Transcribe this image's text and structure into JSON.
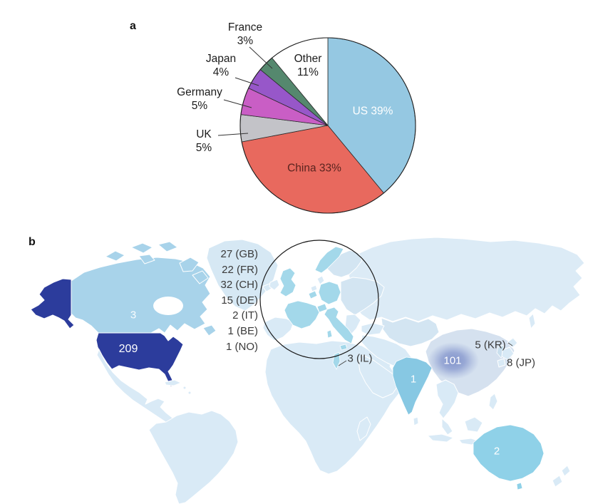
{
  "figure": {
    "panel_a_label": "a",
    "panel_b_label": "b"
  },
  "pie": {
    "external_labels": {
      "france": {
        "line1": "France",
        "line2": "3%"
      },
      "japan": {
        "line1": "Japan",
        "line2": "4%"
      },
      "germany": {
        "line1": "Germany",
        "line2": "5%"
      },
      "uk": {
        "line1": "UK",
        "line2": "5%"
      }
    },
    "internal_labels": {
      "other_line1": "Other",
      "other_line2": "11%",
      "us": "US 39%",
      "china": "China 33%"
    }
  },
  "map": {
    "counts": {
      "us": "209",
      "canada": "3",
      "china": "101",
      "india": "1",
      "australia": "2"
    },
    "side_labels": {
      "israel": "3 (IL)",
      "korea": "5 (KR)",
      "japan": "8 (JP)"
    },
    "europe_list": [
      "27 (GB)",
      "22 (FR)",
      "32 (CH)",
      "15 (DE)",
      "2 (IT)",
      "1 (BE)",
      "1 (NO)"
    ]
  },
  "chart_data": [
    {
      "type": "pie",
      "categories": [
        "US",
        "China",
        "UK",
        "Germany",
        "Japan",
        "France",
        "Other"
      ],
      "values": [
        39,
        33,
        5,
        5,
        4,
        3,
        11
      ],
      "unit": "%",
      "slice_colors": [
        "#95c8e2",
        "#e8695e",
        "#c3c3c8",
        "#c95ec5",
        "#9757c9",
        "#55886e",
        "#ffffff"
      ],
      "start_angle_deg": -90,
      "direction": "clockwise",
      "legend_position": "none",
      "notes": "US/China/Other labeled inside; UK/Germany/Japan/France labeled outside with leader lines"
    },
    {
      "type": "heatmap",
      "subtype": "world-choropleth",
      "categories": [
        "US",
        "Canada",
        "China",
        "Japan",
        "Korea",
        "India",
        "Australia",
        "Israel",
        "GB",
        "FR",
        "CH",
        "DE",
        "IT",
        "BE",
        "NO"
      ],
      "values": [
        209,
        3,
        101,
        8,
        5,
        1,
        2,
        3,
        27,
        22,
        32,
        15,
        2,
        1,
        1
      ],
      "notes": "European countries annotated as list beside a circled Europe inset"
    }
  ],
  "colors": {
    "map_base_land": "#d9eaf6",
    "map_canada": "#a8d3ea",
    "map_us": "#2c3c9c",
    "map_europe_highlight": "#a3d8ea",
    "map_india": "#87c8e3",
    "map_australia": "#8fd1e8",
    "map_israel": "#9fd6e8",
    "map_china": "#d5e1ef",
    "map_glow": "#7e90ca",
    "circle_outline": "#1a1a1a",
    "pie_label_light": "#ffffff",
    "pie_label_dark": "#1c1c1c",
    "pie_china_label": "#5a241f",
    "map_label_dark": "#3a3a3a"
  }
}
